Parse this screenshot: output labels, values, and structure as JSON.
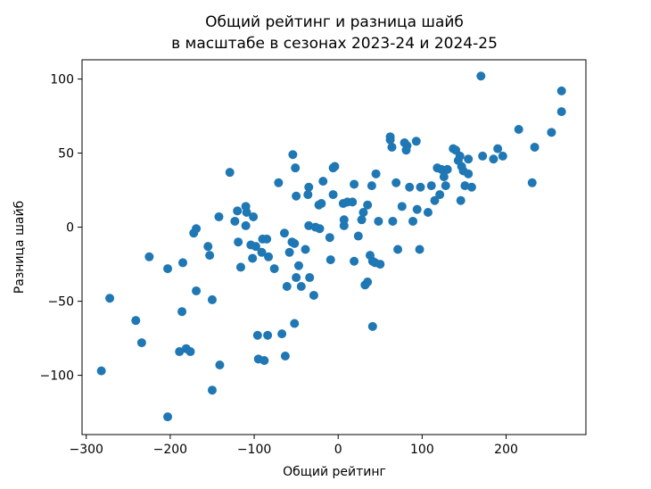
{
  "chart_data": {
    "type": "scatter",
    "title": [
      "Общий рейтинг и разница шайб",
      "в масштабе в сезонах 2023-24 и 2024-25"
    ],
    "x_label": "Общий рейтинг",
    "y_label": "Разница шайб",
    "color": "#1f77b4",
    "xlim": [
      -305,
      295
    ],
    "ylim": [
      -140,
      113
    ],
    "xticks": [
      {
        "value": -300,
        "label": "−300"
      },
      {
        "value": -200,
        "label": "−200"
      },
      {
        "value": -100,
        "label": "−100"
      },
      0,
      100,
      200
    ],
    "yticks": [
      {
        "value": -100,
        "label": "−100"
      },
      {
        "value": -50,
        "label": "−50"
      },
      0,
      50,
      100
    ],
    "x": [
      -282,
      -272,
      -241,
      -234,
      -225,
      -203,
      -203,
      -189,
      -186,
      -185,
      -181,
      -176,
      -172,
      -169,
      -169,
      -155,
      -153,
      -150,
      -150,
      -141,
      -142,
      -129,
      -123,
      -120,
      -119,
      -116,
      -110,
      -109,
      -110,
      -104,
      -101,
      -102,
      -98,
      -96,
      -95,
      -91,
      -90,
      -88,
      -85,
      -84,
      -83,
      -76,
      -71,
      -67,
      -64,
      -63,
      -61,
      -58,
      -54,
      -55,
      -52,
      -51,
      -50,
      -50,
      -52,
      -47,
      -44,
      -39,
      -36,
      -35,
      -34,
      -35,
      -29,
      -27,
      -23,
      -22,
      -20,
      -18,
      -9,
      -10,
      -6,
      -6,
      -4,
      6,
      7,
      7,
      11,
      17,
      19,
      19,
      24,
      28,
      30,
      32,
      35,
      35,
      38,
      40,
      41,
      41,
      44,
      45,
      48,
      50,
      62,
      62,
      64,
      65,
      69,
      71,
      76,
      79,
      81,
      82,
      85,
      89,
      93,
      94,
      97,
      98,
      107,
      111,
      115,
      118,
      121,
      123,
      126,
      128,
      130,
      137,
      140,
      143,
      145,
      146,
      147,
      149,
      151,
      155,
      155,
      159,
      170,
      172,
      185,
      190,
      196,
      215,
      231,
      234,
      254,
      266,
      266
    ],
    "values": [
      -97,
      -48,
      -63,
      -78,
      -20,
      -128,
      -28,
      -84,
      -57,
      -24,
      -82,
      -84,
      -4,
      -1,
      -43,
      -13,
      -19,
      -49,
      -110,
      -93,
      7,
      37,
      4,
      11,
      -10,
      -27,
      14,
      10,
      1,
      -12,
      7,
      -21,
      -13,
      -73,
      -89,
      -17,
      -8,
      -90,
      -8,
      -73,
      -20,
      -28,
      30,
      -72,
      -4,
      -87,
      -40,
      -17,
      49,
      -10,
      -11,
      40,
      -34,
      21,
      -65,
      -26,
      -40,
      -15,
      22,
      27,
      -34,
      1,
      -46,
      0,
      15,
      -1,
      16,
      31,
      -22,
      -7,
      22,
      40,
      41,
      16,
      1,
      5,
      17,
      17,
      -23,
      29,
      -6,
      5,
      10,
      -39,
      -37,
      15,
      -19,
      28,
      -23,
      -67,
      -24,
      36,
      4,
      -25,
      61,
      59,
      54,
      4,
      30,
      -15,
      14,
      57,
      52,
      55,
      27,
      4,
      58,
      12,
      -15,
      27,
      10,
      28,
      18,
      40,
      22,
      39,
      34,
      28,
      39,
      53,
      52,
      45,
      48,
      18,
      41,
      38,
      28,
      46,
      36,
      27,
      102,
      48,
      46,
      53,
      48,
      66,
      30,
      54,
      64,
      92,
      78
    ]
  }
}
